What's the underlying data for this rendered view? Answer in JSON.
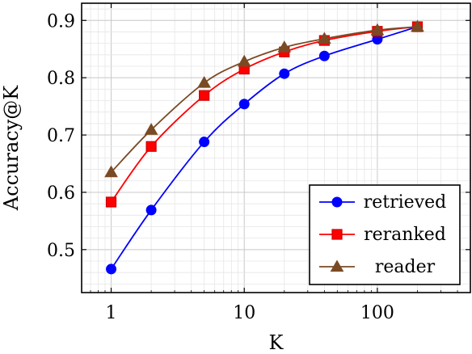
{
  "chart_data": {
    "type": "line",
    "xlabel": "K",
    "ylabel": "Accuracy@K",
    "xscale": "log",
    "xlim": [
      0.6,
      500
    ],
    "ylim": [
      0.425,
      0.93
    ],
    "xticks": [
      1,
      10,
      100
    ],
    "xtick_labels": [
      "1",
      "10",
      "100"
    ],
    "yticks": [
      0.5,
      0.6,
      0.7,
      0.8,
      0.9
    ],
    "ytick_labels": [
      "0.5",
      "0.6",
      "0.7",
      "0.8",
      "0.9"
    ],
    "grid": true,
    "legend_position": "bottom-right",
    "x": [
      1,
      2,
      5,
      10,
      20,
      40,
      100,
      200
    ],
    "series": [
      {
        "name": "retrieved",
        "color": "#0000ff",
        "marker": "circle",
        "values": [
          0.466,
          0.569,
          0.688,
          0.754,
          0.807,
          0.838,
          0.867,
          0.889
        ]
      },
      {
        "name": "reranked",
        "color": "#ff0000",
        "marker_edge": "#cc0000",
        "marker": "square",
        "values": [
          0.583,
          0.68,
          0.769,
          0.815,
          0.845,
          0.865,
          0.881,
          0.889
        ]
      },
      {
        "name": "reader",
        "color": "#7a4a24",
        "marker": "triangle",
        "values": [
          0.635,
          0.709,
          0.791,
          0.828,
          0.853,
          0.868,
          0.883,
          0.889
        ]
      }
    ]
  }
}
